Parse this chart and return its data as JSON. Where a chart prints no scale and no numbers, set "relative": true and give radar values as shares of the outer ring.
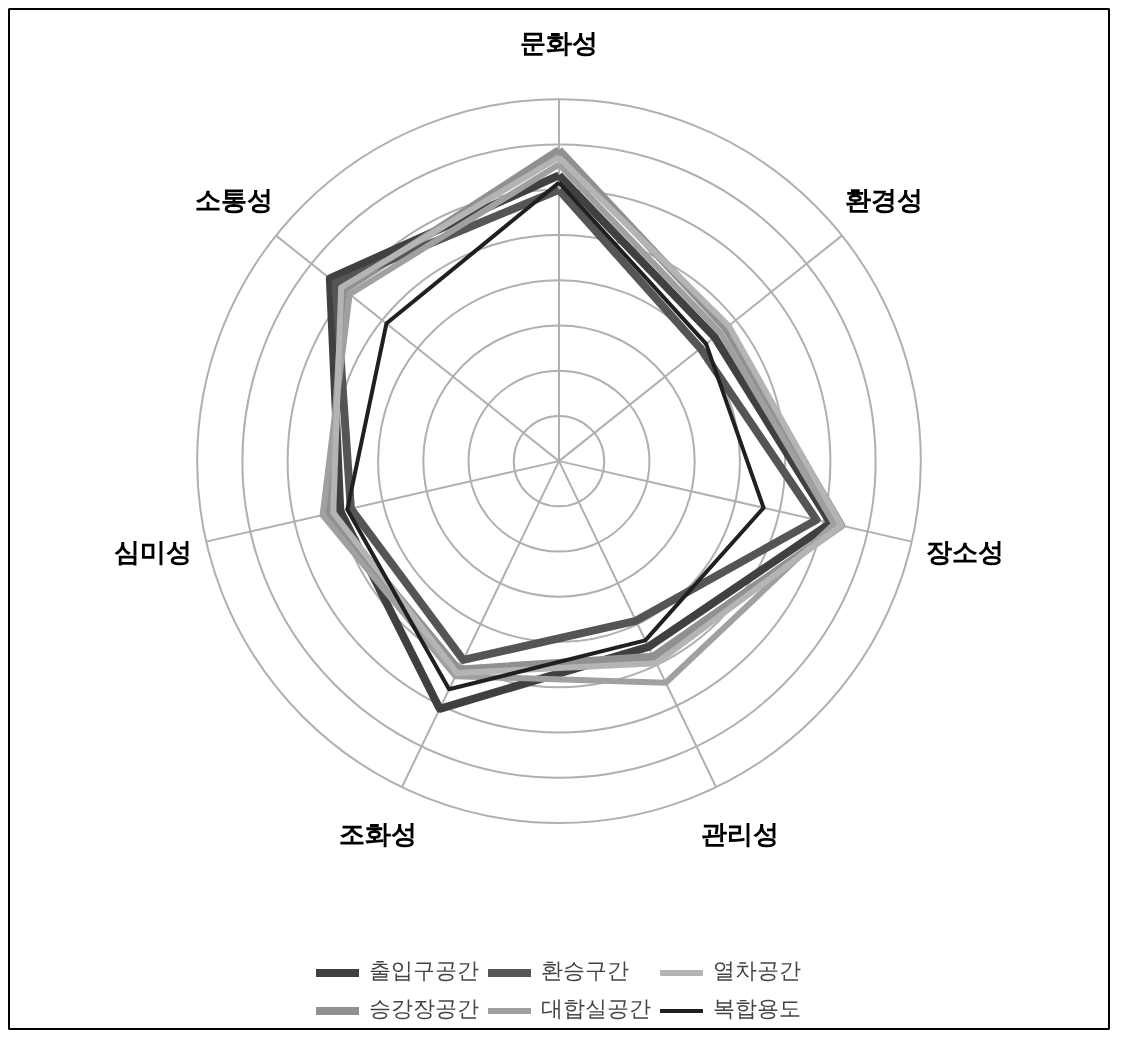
{
  "chart_data": {
    "type": "radar",
    "relative": true,
    "grid": true,
    "legend": "bottom",
    "categories": [
      "문화성",
      "환경성",
      "장소성",
      "관리성",
      "조화성",
      "심미성",
      "소통성"
    ],
    "series": [
      {
        "name": "출입구공간",
        "color": "#404040",
        "values": [
          0.79,
          0.55,
          0.77,
          0.57,
          0.76,
          0.62,
          0.81
        ]
      },
      {
        "name": "승강장공간",
        "color": "#909090",
        "values": [
          0.86,
          0.59,
          0.8,
          0.6,
          0.64,
          0.65,
          0.76
        ]
      },
      {
        "name": "환승구간",
        "color": "#555555",
        "values": [
          0.75,
          0.5,
          0.73,
          0.49,
          0.61,
          0.59,
          0.79
        ]
      },
      {
        "name": "대합실공간",
        "color": "#a0a0a0",
        "values": [
          0.82,
          0.57,
          0.78,
          0.68,
          0.66,
          0.67,
          0.74
        ]
      },
      {
        "name": "열차공간",
        "color": "#b4b4b4",
        "values": [
          0.84,
          0.6,
          0.8,
          0.62,
          0.65,
          0.64,
          0.77
        ]
      },
      {
        "name": "복합용도",
        "color": "#202020",
        "values": [
          0.77,
          0.52,
          0.58,
          0.55,
          0.7,
          0.6,
          0.61
        ]
      }
    ]
  }
}
